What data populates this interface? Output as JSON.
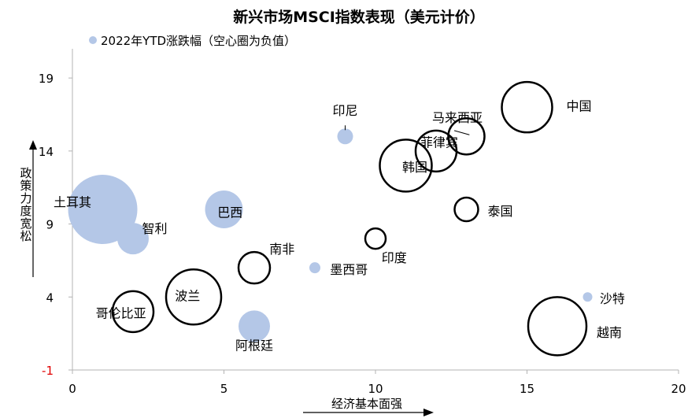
{
  "chart_data": {
    "type": "scatter",
    "subtype": "bubble",
    "title": "新兴市场MSCI指数表现（美元计价）",
    "legend": {
      "label": "2022年YTD涨跌幅（空心圈为负值）",
      "color": "#b4c7e7",
      "position": "top-left"
    },
    "xlabel": "经济基本面强",
    "ylabel": "政策力度宽松",
    "xlim": [
      0,
      20
    ],
    "ylim": [
      -1,
      21
    ],
    "x_ticks": [
      "0",
      "5",
      "10",
      "15",
      "20"
    ],
    "y_ticks": [
      "-1",
      "4",
      "9",
      "14",
      "19"
    ],
    "grid": false,
    "colors": {
      "fill": "#b4c7e7",
      "hollow_stroke": "#000000",
      "negative_tick": "#e00000",
      "axis": "#b3b3b3"
    },
    "points": [
      {
        "name": "土耳其",
        "x": 1,
        "y": 10,
        "size": 44,
        "negative": false
      },
      {
        "name": "智利",
        "x": 2,
        "y": 8,
        "size": 20,
        "negative": false
      },
      {
        "name": "巴西",
        "x": 5,
        "y": 10,
        "size": 24,
        "negative": false
      },
      {
        "name": "阿根廷",
        "x": 6,
        "y": 2,
        "size": 20,
        "negative": false
      },
      {
        "name": "印尼",
        "x": 9,
        "y": 15,
        "size": 10,
        "negative": false
      },
      {
        "name": "墨西哥",
        "x": 8,
        "y": 6,
        "size": 7,
        "negative": false
      },
      {
        "name": "沙特",
        "x": 17,
        "y": 4,
        "size": 6,
        "negative": false
      },
      {
        "name": "哥伦比亚",
        "x": 2,
        "y": 3,
        "size": 26,
        "negative": true
      },
      {
        "name": "波兰",
        "x": 4,
        "y": 4,
        "size": 35,
        "negative": true
      },
      {
        "name": "南非",
        "x": 6,
        "y": 6,
        "size": 20,
        "negative": true
      },
      {
        "name": "印度",
        "x": 10,
        "y": 8,
        "size": 13,
        "negative": true
      },
      {
        "name": "韩国",
        "x": 11,
        "y": 13,
        "size": 33,
        "negative": true
      },
      {
        "name": "菲律宾",
        "x": 12,
        "y": 14,
        "size": 26,
        "negative": true
      },
      {
        "name": "马来西亚",
        "x": 13,
        "y": 15,
        "size": 23,
        "negative": true
      },
      {
        "name": "泰国",
        "x": 13,
        "y": 10,
        "size": 15,
        "negative": true
      },
      {
        "name": "中国",
        "x": 15,
        "y": 17,
        "size": 32,
        "negative": true
      },
      {
        "name": "越南",
        "x": 16,
        "y": 2,
        "size": 37,
        "negative": true
      }
    ]
  }
}
